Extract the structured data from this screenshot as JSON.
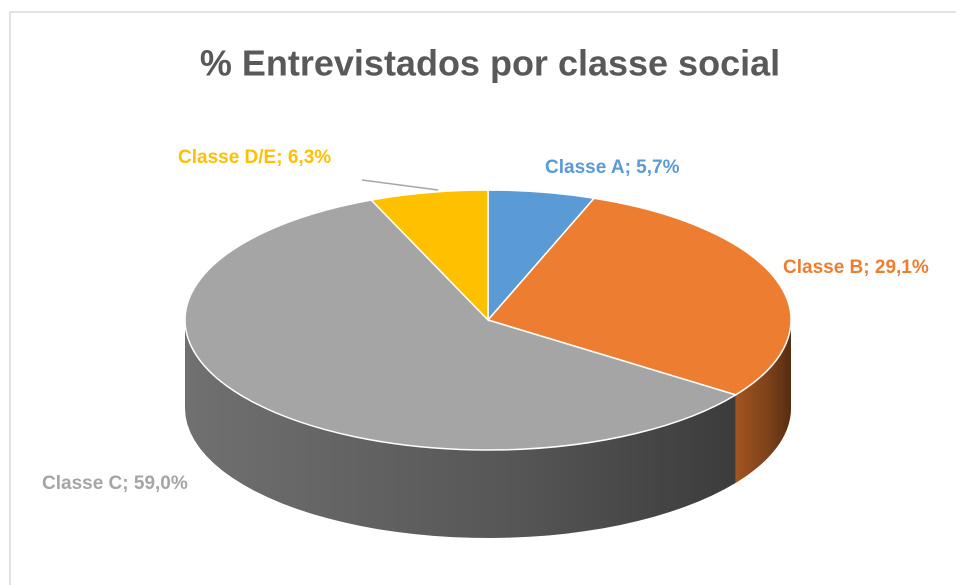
{
  "chart_data": {
    "type": "pie",
    "title": "% Entrevistados por classe social",
    "categories": [
      "Classe A",
      "Classe B",
      "Classe C",
      "Classe D/E"
    ],
    "values": [
      5.7,
      29.1,
      59.0,
      6.3
    ],
    "value_labels": [
      "5,7%",
      "29,1%",
      "59,0%",
      "6,3%"
    ],
    "label_separator": "; ",
    "colors": [
      "#5b9bd5",
      "#ed7d31",
      "#a5a5a5",
      "#ffc000"
    ]
  }
}
